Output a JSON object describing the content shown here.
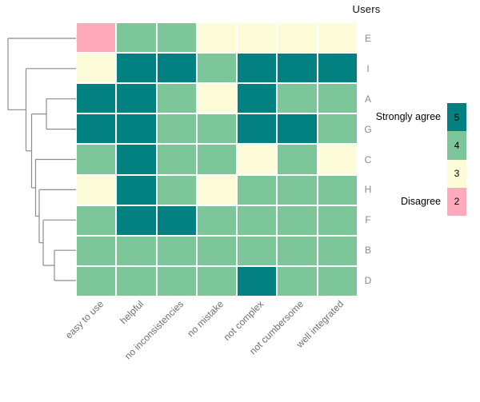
{
  "chart_data": {
    "type": "heatmap",
    "title": "Users",
    "rows": [
      "E",
      "I",
      "A",
      "G",
      "C",
      "H",
      "F",
      "B",
      "D"
    ],
    "columns": [
      "easy to use",
      "helpful",
      "no inconsistencies",
      "no mistake",
      "not complex",
      "not cumbersome",
      "well integrated"
    ],
    "values": [
      [
        2,
        4,
        4,
        3,
        3,
        3,
        3
      ],
      [
        3,
        5,
        5,
        4,
        5,
        5,
        5
      ],
      [
        5,
        5,
        4,
        3,
        5,
        4,
        4
      ],
      [
        5,
        5,
        4,
        4,
        5,
        5,
        4
      ],
      [
        4,
        5,
        4,
        4,
        3,
        4,
        3
      ],
      [
        3,
        5,
        4,
        3,
        4,
        4,
        4
      ],
      [
        4,
        5,
        5,
        4,
        4,
        4,
        4
      ],
      [
        4,
        4,
        4,
        4,
        4,
        4,
        4
      ],
      [
        4,
        4,
        4,
        4,
        5,
        4,
        4
      ]
    ],
    "scale": [
      {
        "value": "5",
        "label": "Strongly agree",
        "color": "#038080"
      },
      {
        "value": "4",
        "label": "",
        "color": "#7cc69a"
      },
      {
        "value": "3",
        "label": "",
        "color": "#fcfcd9"
      },
      {
        "value": "2",
        "label": "Disagree",
        "color": "#ffaabb"
      }
    ],
    "legend_position": "right",
    "grid_color": "#ffffff",
    "row_label_color": "#8a8a8a",
    "column_label_angle": 45,
    "row_dendrogram": {
      "line_color": "#8c8c8c",
      "order": [
        "E",
        "I",
        "A",
        "G",
        "C",
        "H",
        "F",
        "B",
        "D"
      ],
      "segments": [
        [
          10,
          48,
          95,
          48
        ],
        [
          10,
          48,
          10,
          137.3
        ],
        [
          10,
          137.3,
          32.5,
          137.3
        ],
        [
          32.5,
          85.8,
          95,
          85.8
        ],
        [
          32.5,
          85.8,
          32.5,
          188.8
        ],
        [
          32.5,
          188.8,
          39.5,
          188.8
        ],
        [
          39.5,
          142.6,
          39.5,
          235
        ],
        [
          39.5,
          142.6,
          58,
          142.6
        ],
        [
          39.5,
          235,
          44.5,
          235
        ],
        [
          58,
          123.7,
          58,
          161.6
        ],
        [
          58,
          123.7,
          95,
          123.7
        ],
        [
          58,
          161.6,
          95,
          161.6
        ],
        [
          44.5,
          199.5,
          44.5,
          270.5
        ],
        [
          44.5,
          199.5,
          95,
          199.5
        ],
        [
          44.5,
          270.5,
          49,
          270.5
        ],
        [
          49,
          237.4,
          49,
          303.7
        ],
        [
          49,
          237.4,
          95,
          237.4
        ],
        [
          49,
          303.7,
          54,
          303.7
        ],
        [
          54,
          275.3,
          54,
          332.1
        ],
        [
          54,
          275.3,
          95,
          275.3
        ],
        [
          54,
          332.1,
          68,
          332.1
        ],
        [
          68,
          313.2,
          68,
          351
        ],
        [
          68,
          313.2,
          95,
          313.2
        ],
        [
          68,
          351,
          95,
          351
        ]
      ]
    }
  }
}
